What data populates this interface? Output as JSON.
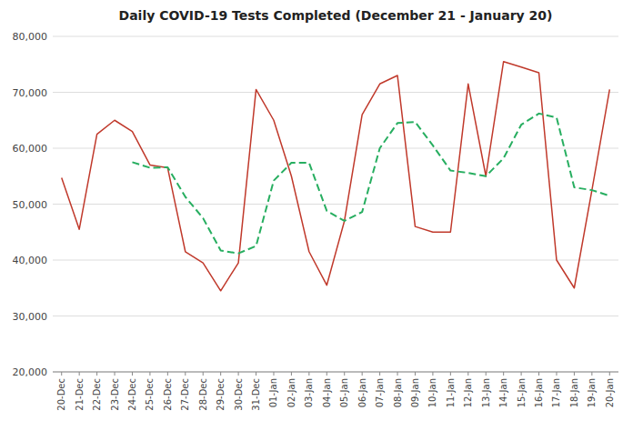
{
  "chart_data": {
    "type": "line",
    "title": "Daily COVID-19 Tests Completed (December 21 - January 20)",
    "categories": [
      "20-Dec",
      "21-Dec",
      "22-Dec",
      "23-Dec",
      "24-Dec",
      "25-Dec",
      "26-Dec",
      "27-Dec",
      "28-Dec",
      "29-Dec",
      "30-Dec",
      "31-Dec",
      "01-Jan",
      "02-Jan",
      "03-Jan",
      "04-Jan",
      "05-Jan",
      "06-Jan",
      "07-Jan",
      "08-Jan",
      "09-Jan",
      "10-Jan",
      "11-Jan",
      "12-Jan",
      "13-Jan",
      "14-Jan",
      "15-Jan",
      "16-Jan",
      "17-Jan",
      "18-Jan",
      "19-Jan",
      "20-Jan"
    ],
    "series": [
      {
        "color": "#c0392b",
        "line_style": "solid",
        "values": [
          54700,
          45500,
          62500,
          65000,
          63000,
          57000,
          56500,
          41500,
          39500,
          34500,
          39500,
          70500,
          65000,
          55000,
          41500,
          35500,
          47000,
          66000,
          71500,
          73000,
          46000,
          45000,
          45000,
          71500,
          55000,
          75500,
          74500,
          73500,
          40000,
          35000,
          52500,
          70500
        ]
      },
      {
        "color": "#27ae60",
        "line_style": "dashed",
        "values": [
          null,
          null,
          null,
          null,
          57500,
          56500,
          56600,
          51300,
          47500,
          41700,
          41200,
          42500,
          54200,
          57400,
          57400,
          48800,
          47000,
          48600,
          60000,
          64500,
          64700,
          60500,
          56000,
          55600,
          55000,
          58200,
          64200,
          66200,
          65500,
          53000,
          52500,
          51500
        ]
      }
    ],
    "ylim": [
      20000,
      80000
    ],
    "yticks": [
      {
        "value": 20000,
        "label": "20,000"
      },
      {
        "value": 30000,
        "label": "30,000"
      },
      {
        "value": 40000,
        "label": "40,000"
      },
      {
        "value": 50000,
        "label": "50,000"
      },
      {
        "value": 60000,
        "label": "60,000"
      },
      {
        "value": 70000,
        "label": "70,000"
      },
      {
        "value": 80000,
        "label": "80,000"
      }
    ],
    "grid": "y"
  }
}
